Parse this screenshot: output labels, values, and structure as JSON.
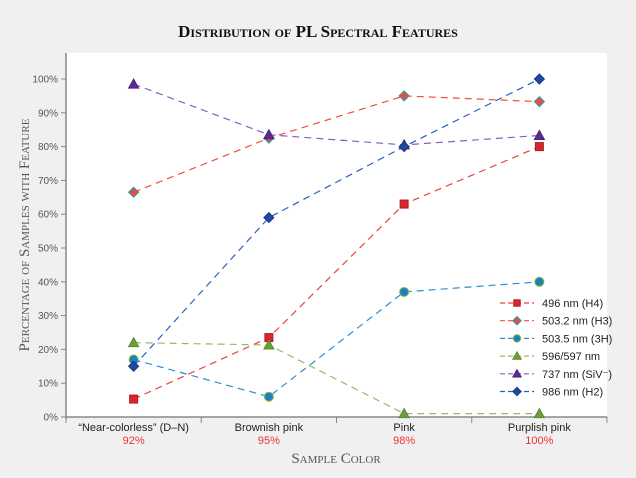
{
  "chart_data": {
    "type": "line",
    "title": "Distribution of PL Spectral Features",
    "xlabel": "Sample Color",
    "ylabel": "Percentage of Samples with Feature",
    "categories": [
      "“Near-colorless” (D–N)",
      "Brownish pink",
      "Pink",
      "Purplish pink"
    ],
    "category_sublabels": [
      "92%",
      "95%",
      "98%",
      "100%"
    ],
    "ylim": [
      0,
      100
    ],
    "yticks": [
      "0%",
      "10%",
      "20%",
      "30%",
      "40%",
      "50%",
      "60%",
      "70%",
      "80%",
      "90%",
      "100%"
    ],
    "legend_position": "bottom-right",
    "series": [
      {
        "name": "496 nm (H4)",
        "values": [
          5.3,
          23.5,
          63,
          80
        ],
        "color": "#d7262e",
        "line": "#e8433f",
        "marker": "square",
        "outline": "#b01c22"
      },
      {
        "name": "503.2 nm (H3)",
        "values": [
          66.5,
          82.5,
          95,
          93.3
        ],
        "color": "#f04a3a",
        "line": "#f0503f",
        "marker": "diamond",
        "outline": "#1aa3b5"
      },
      {
        "name": "503.5 nm (3H)",
        "values": [
          17,
          6,
          37,
          40
        ],
        "color": "#1a7fc6",
        "line": "#2b8fd6",
        "marker": "circle",
        "outline": "#8fb832"
      },
      {
        "name": "596/597 nm",
        "values": [
          22,
          21.3,
          1,
          1
        ],
        "color": "#6e9e3c",
        "line": "#9ab866",
        "marker": "triangle",
        "outline": "#5a8a2e"
      },
      {
        "name": "737 nm (SiV⁻)",
        "values": [
          98.5,
          83.5,
          80.5,
          83.3
        ],
        "color": "#5c2d91",
        "line": "#8a5cc4",
        "marker": "triangle",
        "outline": "#4a2078"
      },
      {
        "name": "986 nm (H2)",
        "values": [
          15,
          59,
          80,
          100
        ],
        "color": "#1d4aa0",
        "line": "#2a60c0",
        "marker": "diamond",
        "outline": "#163a80"
      }
    ]
  }
}
